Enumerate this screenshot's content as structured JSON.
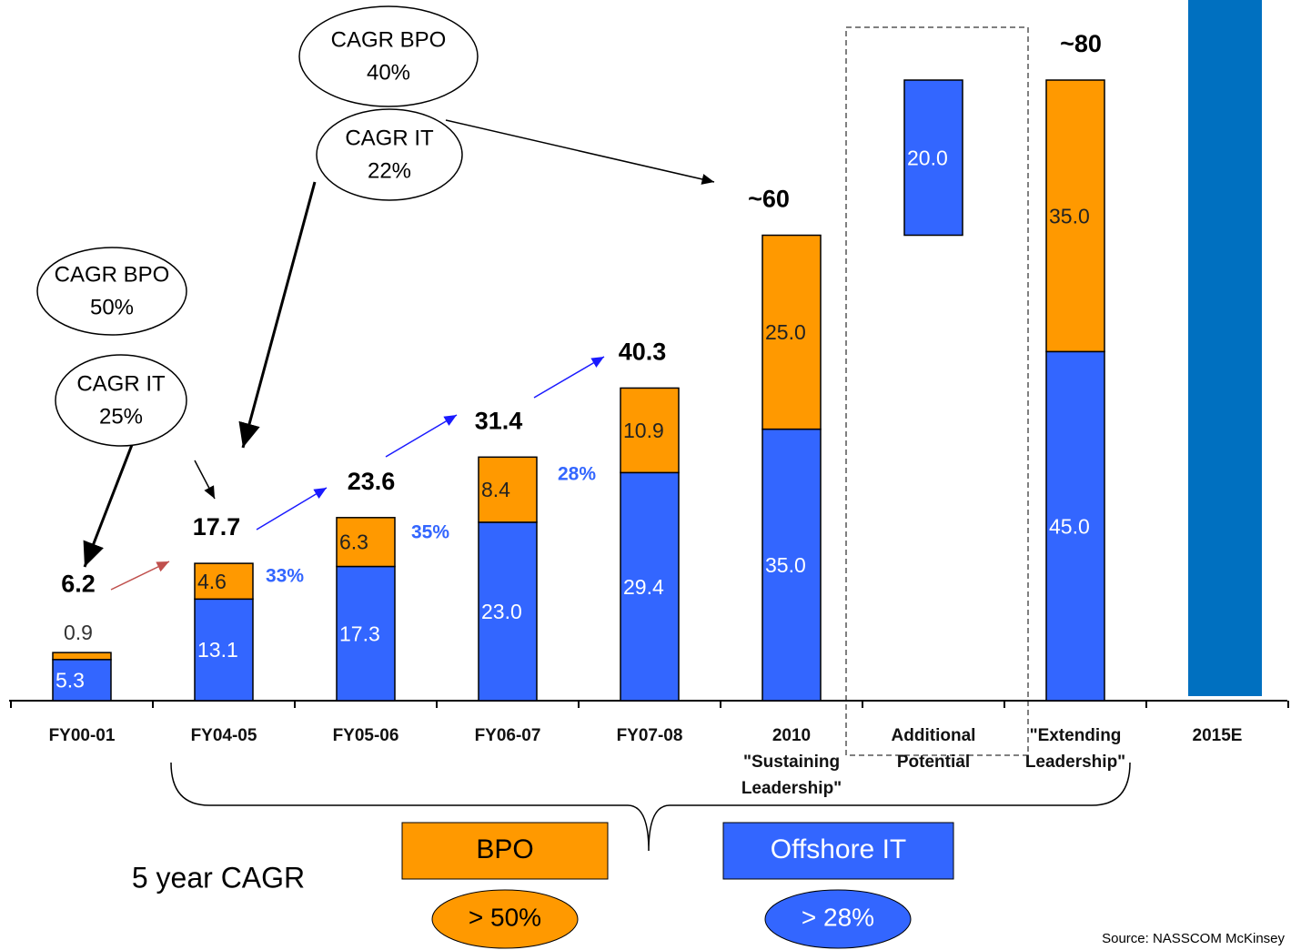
{
  "chart_data": {
    "type": "stacked_bar",
    "categories": [
      "FY00-01",
      "FY04-05",
      "FY05-06",
      "FY06-07",
      "FY07-08",
      "2010 \"Sustaining Leadership\"",
      "Additional Potential",
      "\"Extending Leadership\"",
      "2015E"
    ],
    "series": [
      {
        "name": "Offshore IT",
        "color": "#3366ff",
        "values": [
          5.3,
          13.1,
          17.3,
          23.0,
          29.4,
          35.0,
          20.0,
          45.0,
          null
        ],
        "value_labels": [
          "5.3",
          "13.1",
          "17.3",
          "23.0",
          "29.4",
          "35.0",
          "20.0",
          "45.0",
          null
        ]
      },
      {
        "name": "BPO",
        "color": "#ff9900",
        "values": [
          0.9,
          4.6,
          6.3,
          8.4,
          10.9,
          25.0,
          null,
          35.0,
          null
        ],
        "value_labels": [
          "0.9",
          "4.6",
          "6.3",
          "8.4",
          "10.9",
          "25.0",
          null,
          "35.0",
          null
        ]
      }
    ],
    "floating": [
      false,
      false,
      false,
      false,
      false,
      false,
      true,
      false,
      false
    ],
    "totals": [
      6.2,
      17.7,
      23.6,
      31.4,
      40.3,
      60,
      null,
      80,
      null
    ],
    "total_labels": [
      "6.2",
      "17.7",
      "23.6",
      "31.4",
      "40.3",
      "~60",
      null,
      "~80",
      null
    ],
    "growth_rates": [
      "33%",
      "35%",
      "28%"
    ],
    "callouts": [
      [
        "CAGR BPO",
        "50%"
      ],
      [
        "CAGR IT",
        "25%"
      ],
      [
        "CAGR BPO",
        "40%"
      ],
      [
        "CAGR IT",
        "22%"
      ]
    ],
    "cagr_label": "5 year CAGR",
    "cagr_values": [
      "> 50%",
      "> 28%"
    ],
    "source": "Source: NASSCOM McKinsey",
    "ylim": [
      0,
      80
    ]
  }
}
